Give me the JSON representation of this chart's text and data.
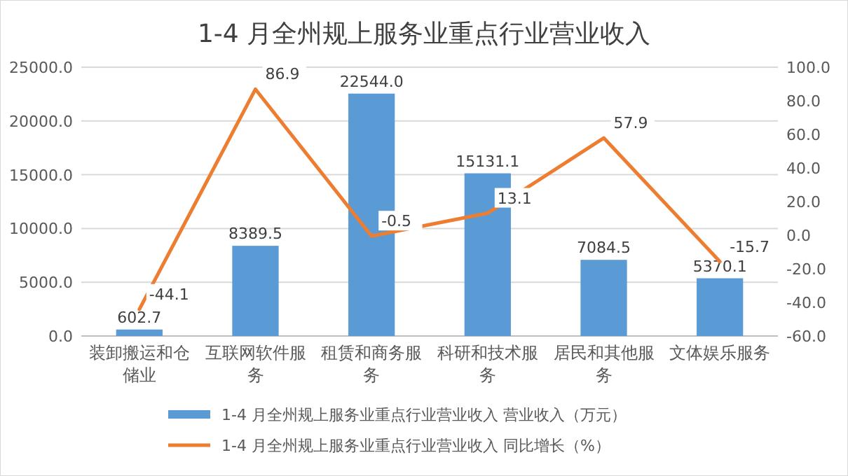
{
  "chart_data": {
    "type": "bar",
    "title": "1-4 月全州规上服务业重点行业营业收入",
    "categories": [
      "装卸搬运和仓储业",
      "互联网软件服务",
      "租赁和商务服务",
      "科研和技术服务",
      "居民和其他服务",
      "文体娱乐服务"
    ],
    "series": [
      {
        "name": "1-4 月全州规上服务业重点行业营业收入 营业收入（万元）",
        "color": "#5b9bd5",
        "values": [
          602.7,
          8389.5,
          22544.0,
          15131.1,
          7084.5,
          5370.1
        ],
        "value_labels": [
          "602.7",
          "8389.5",
          "22544.0",
          "15131.1",
          "7084.5",
          "5370.1"
        ]
      },
      {
        "name": "1-4 月全州规上服务业重点行业营业收入 同比增长（%）",
        "type": "line",
        "axis": "y2",
        "color": "#ed7d31",
        "values": [
          -44.1,
          86.9,
          -0.5,
          13.1,
          57.9,
          -15.7
        ],
        "value_labels": [
          "-44.1",
          "86.9",
          "-0.5",
          "13.1",
          "57.9",
          "-15.7"
        ]
      }
    ],
    "ylim": [
      0,
      25000
    ],
    "yticks": [
      {
        "value": 0,
        "label": "0.0"
      },
      {
        "value": 5000,
        "label": "5000.0"
      },
      {
        "value": 10000,
        "label": "10000.0"
      },
      {
        "value": 15000,
        "label": "15000.0"
      },
      {
        "value": 20000,
        "label": "20000.0"
      },
      {
        "value": 25000,
        "label": "25000.0"
      }
    ],
    "y2lim": [
      -60,
      100
    ],
    "y2ticks": [
      {
        "value": -60,
        "label": "-60.0"
      },
      {
        "value": -40,
        "label": "-40.0"
      },
      {
        "value": -20,
        "label": "-20.0"
      },
      {
        "value": 0,
        "label": "0.0"
      },
      {
        "value": 20,
        "label": "20.0"
      },
      {
        "value": 40,
        "label": "40.0"
      },
      {
        "value": 60,
        "label": "60.0"
      },
      {
        "value": 80,
        "label": "80.0"
      },
      {
        "value": 100,
        "label": "100.0"
      }
    ],
    "grid": "y",
    "legend": "bottom"
  }
}
